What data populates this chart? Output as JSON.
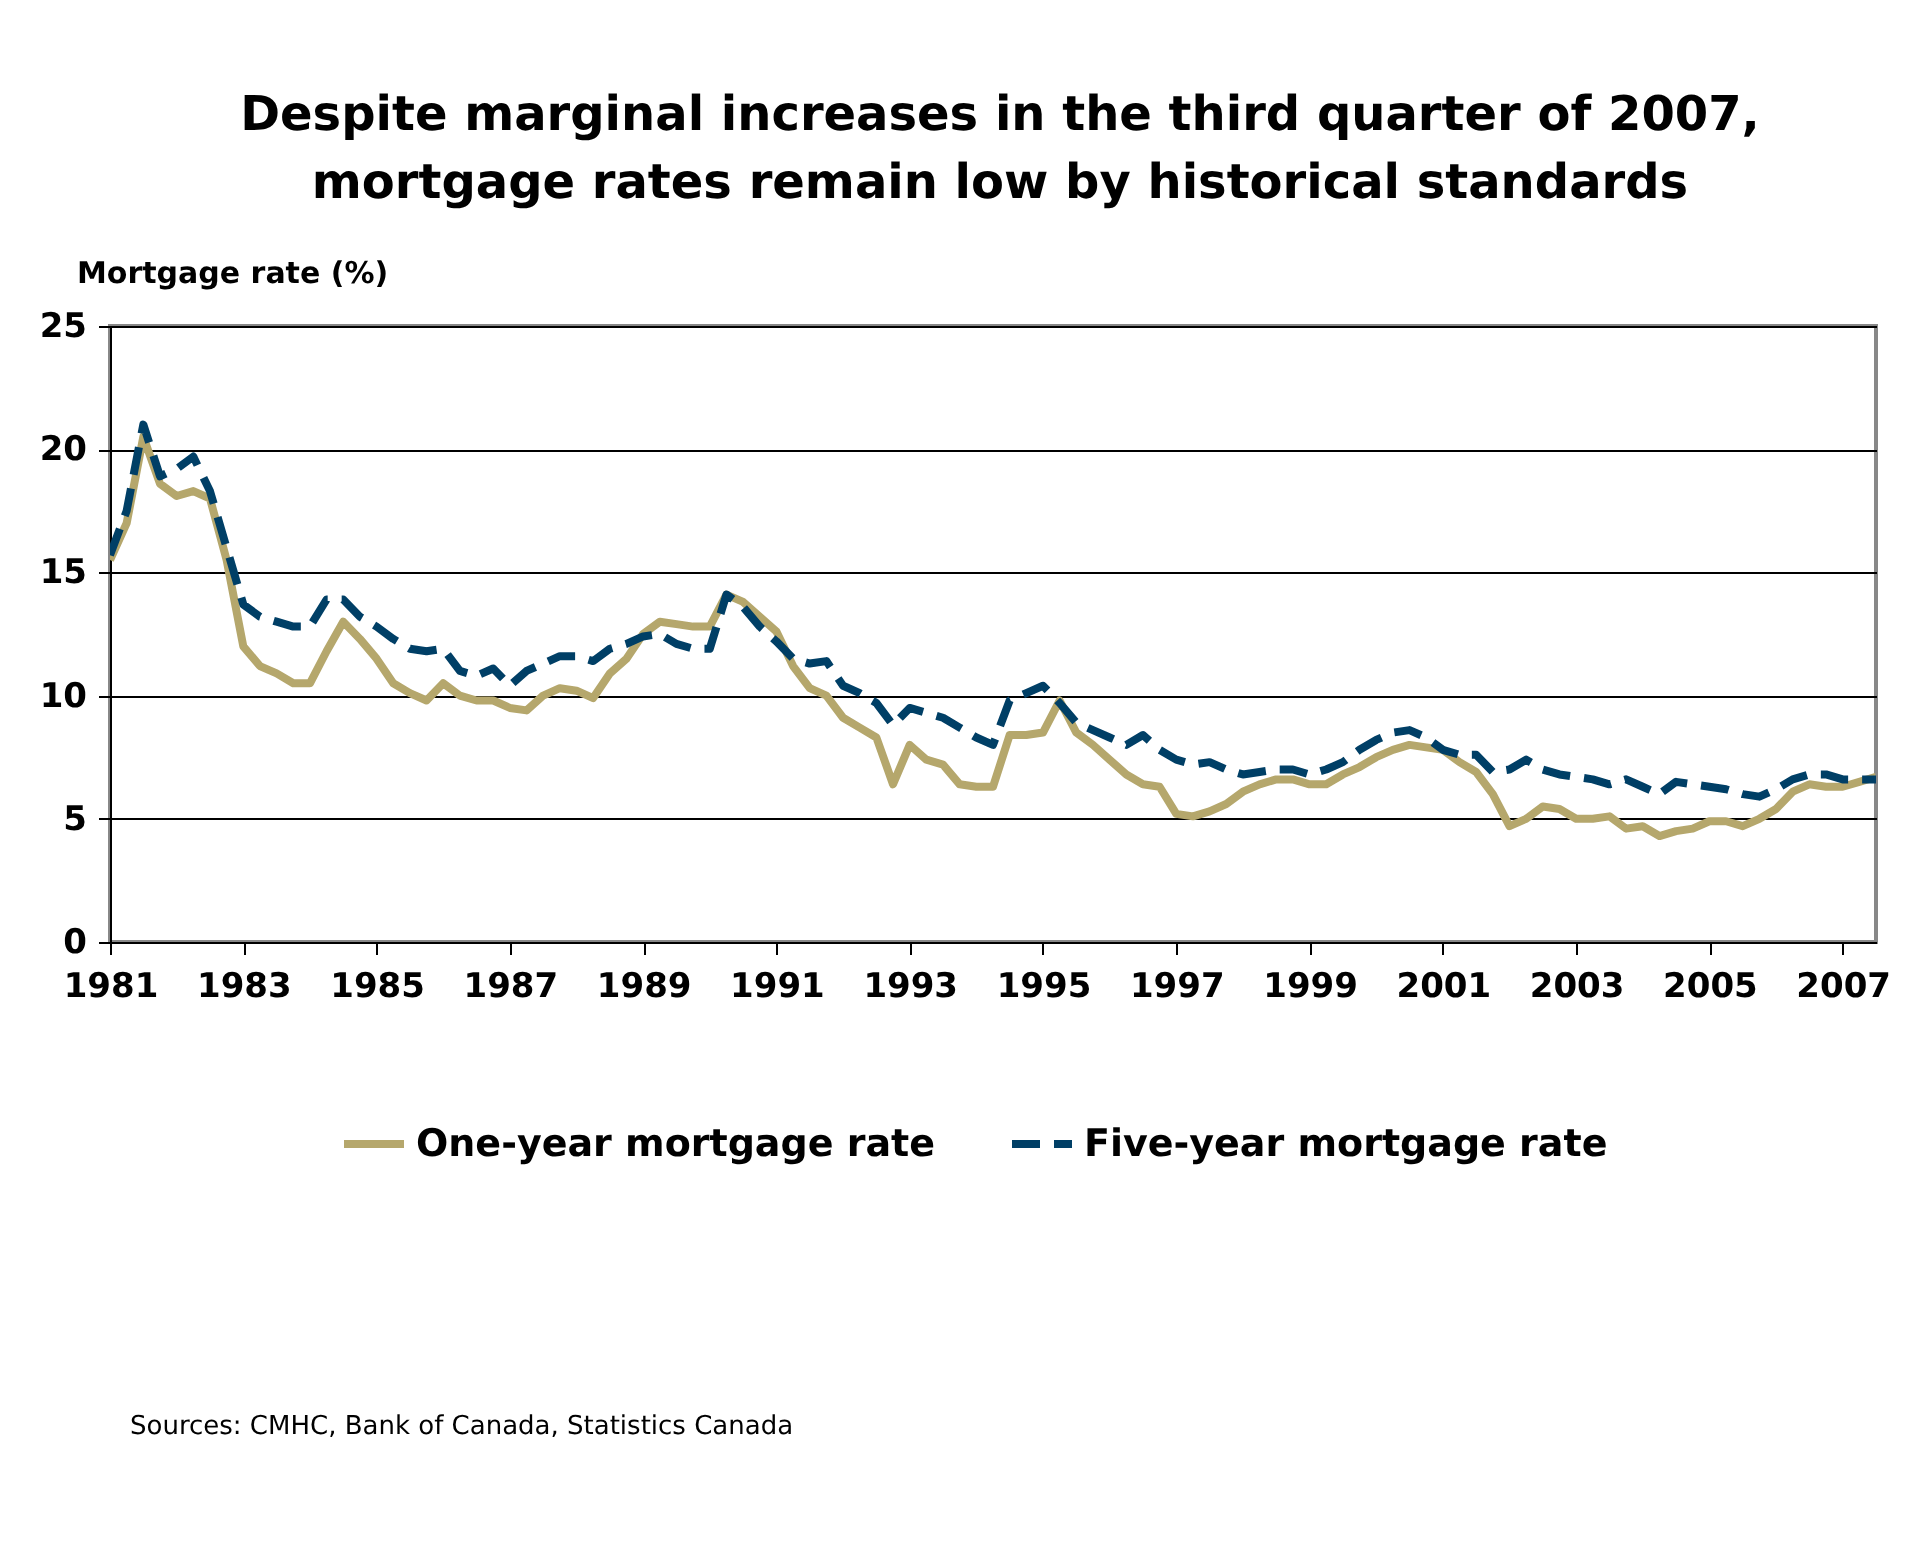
{
  "chart_data": {
    "type": "line",
    "title": "Despite marginal increases in the third quarter of 2007, mortgage rates remain low by historical standards",
    "ylabel": "Mortgage rate (%)",
    "x": [
      1981,
      1981.25,
      1981.5,
      1981.75,
      1982,
      1982.25,
      1982.5,
      1982.75,
      1983,
      1983.25,
      1983.5,
      1983.75,
      1984,
      1984.25,
      1984.5,
      1984.75,
      1985,
      1985.25,
      1985.5,
      1985.75,
      1986,
      1986.25,
      1986.5,
      1986.75,
      1987,
      1987.25,
      1987.5,
      1987.75,
      1988,
      1988.25,
      1988.5,
      1988.75,
      1989,
      1989.25,
      1989.5,
      1989.75,
      1990,
      1990.25,
      1990.5,
      1990.75,
      1991,
      1991.25,
      1991.5,
      1991.75,
      1992,
      1992.25,
      1992.5,
      1992.75,
      1993,
      1993.25,
      1993.5,
      1993.75,
      1994,
      1994.25,
      1994.5,
      1994.75,
      1995,
      1995.25,
      1995.5,
      1995.75,
      1996,
      1996.25,
      1996.5,
      1996.75,
      1997,
      1997.25,
      1997.5,
      1997.75,
      1998,
      1998.25,
      1998.5,
      1998.75,
      1999,
      1999.25,
      1999.5,
      1999.75,
      2000,
      2000.25,
      2000.5,
      2000.75,
      2001,
      2001.25,
      2001.5,
      2001.75,
      2002,
      2002.25,
      2002.5,
      2002.75,
      2003,
      2003.25,
      2003.5,
      2003.75,
      2004,
      2004.25,
      2004.5,
      2004.75,
      2005,
      2005.25,
      2005.5,
      2005.75,
      2006,
      2006.25,
      2006.5,
      2006.75,
      2007,
      2007.25,
      2007.5
    ],
    "series": [
      {
        "name": "One-year mortgage rate",
        "color": "#b5a76c",
        "line_style": "solid",
        "values": [
          15.5,
          17.0,
          20.5,
          18.6,
          18.1,
          18.3,
          18.0,
          15.5,
          12.0,
          11.2,
          10.9,
          10.5,
          10.5,
          11.8,
          13.0,
          12.3,
          11.5,
          10.5,
          10.1,
          9.8,
          10.5,
          10.0,
          9.8,
          9.8,
          9.5,
          9.4,
          10.0,
          10.3,
          10.2,
          9.9,
          10.9,
          11.5,
          12.5,
          13.0,
          12.9,
          12.8,
          12.8,
          14.1,
          13.8,
          13.2,
          12.6,
          11.2,
          10.3,
          10.0,
          9.1,
          8.7,
          8.3,
          6.4,
          8.0,
          7.4,
          7.2,
          6.4,
          6.3,
          6.3,
          8.4,
          8.4,
          8.5,
          9.8,
          8.5,
          8.0,
          7.4,
          6.8,
          6.4,
          6.3,
          5.2,
          5.1,
          5.3,
          5.6,
          6.1,
          6.4,
          6.6,
          6.6,
          6.4,
          6.4,
          6.8,
          7.1,
          7.5,
          7.8,
          8.0,
          7.9,
          7.8,
          7.3,
          6.9,
          6.0,
          4.7,
          5.0,
          5.5,
          5.4,
          5.0,
          5.0,
          5.1,
          4.6,
          4.7,
          4.3,
          4.5,
          4.6,
          4.9,
          4.9,
          4.7,
          5.0,
          5.4,
          6.1,
          6.4,
          6.3,
          6.3,
          6.5,
          6.7
        ]
      },
      {
        "name": "Five-year mortgage rate",
        "color": "#003f66",
        "line_style": "dashed",
        "values": [
          15.7,
          17.5,
          21.0,
          18.9,
          19.2,
          19.7,
          18.3,
          16.0,
          13.7,
          13.2,
          13.0,
          12.8,
          12.8,
          13.9,
          13.9,
          13.2,
          12.8,
          12.3,
          11.9,
          11.8,
          11.9,
          11.0,
          10.8,
          11.1,
          10.4,
          11.0,
          11.3,
          11.6,
          11.6,
          11.4,
          11.9,
          12.1,
          12.4,
          12.5,
          12.1,
          11.9,
          11.9,
          14.1,
          13.6,
          12.8,
          12.2,
          11.5,
          11.3,
          11.4,
          10.4,
          10.1,
          9.7,
          8.8,
          9.5,
          9.3,
          9.1,
          8.7,
          8.3,
          8.0,
          9.8,
          10.1,
          10.4,
          9.7,
          8.9,
          8.6,
          8.3,
          8.0,
          8.4,
          7.8,
          7.4,
          7.2,
          7.3,
          7.0,
          6.8,
          6.9,
          7.0,
          7.0,
          6.8,
          7.0,
          7.3,
          7.8,
          8.2,
          8.5,
          8.6,
          8.3,
          7.8,
          7.6,
          7.6,
          6.9,
          7.0,
          7.4,
          7.0,
          6.8,
          6.7,
          6.6,
          6.4,
          6.6,
          6.3,
          6.0,
          6.5,
          6.4,
          6.3,
          6.2,
          6.0,
          5.9,
          6.2,
          6.6,
          6.8,
          6.8,
          6.6,
          6.6,
          6.6
        ]
      }
    ],
    "xlim": [
      1981,
      2007.5
    ],
    "xticks": [
      1981,
      1983,
      1985,
      1987,
      1989,
      1991,
      1993,
      1995,
      1997,
      1999,
      2001,
      2003,
      2005,
      2007
    ],
    "ylim": [
      0,
      25
    ],
    "yticks": [
      0,
      5,
      10,
      15,
      20,
      25
    ],
    "grid": "y",
    "legend": "bottom",
    "annotations": [
      "Sources: CMHC, Bank of Canada, Statistics Canada"
    ]
  }
}
